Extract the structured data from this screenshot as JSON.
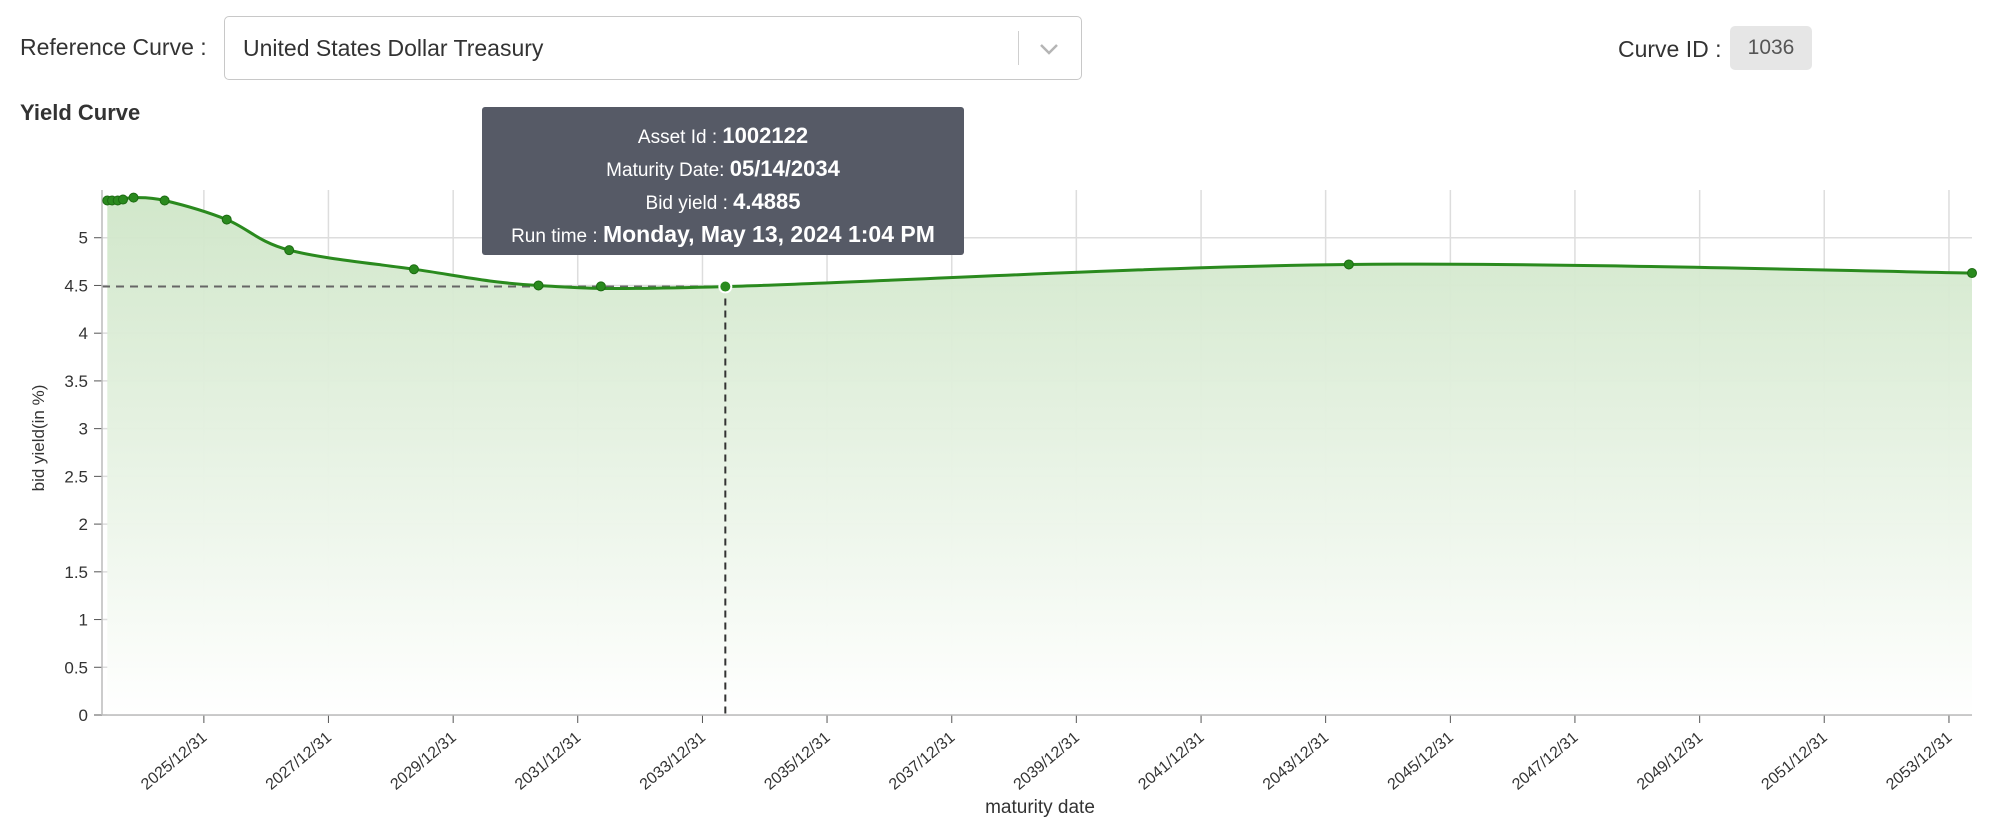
{
  "header": {
    "reference_label": "Reference Curve :",
    "reference_value": "United States Dollar Treasury",
    "curve_id_label": "Curve ID :",
    "curve_id_value": "1036"
  },
  "tooltip": {
    "asset_label": "Asset Id : ",
    "asset_value": "1002122",
    "maturity_label": "Maturity Date: ",
    "maturity_value": "05/14/2034",
    "bid_label": "Bid yield : ",
    "bid_value": "4.4885",
    "run_label": "Run time : ",
    "run_value": "Monday, May 13, 2024 1:04 PM"
  },
  "colors": {
    "line": "#2a8a1e",
    "area_top": "#cfe6c8",
    "area_bottom": "#ffffff",
    "grid": "#dddddd",
    "tooltip_bg": "#565a66"
  },
  "chart_data": {
    "type": "area",
    "title": "Yield Curve",
    "xlabel": "maturity date",
    "ylabel": "bid yield(in %)",
    "x_ticks": [
      "2025/12/31",
      "2027/12/31",
      "2029/12/31",
      "2031/12/31",
      "2033/12/31",
      "2035/12/31",
      "2037/12/31",
      "2039/12/31",
      "2041/12/31",
      "2043/12/31",
      "2045/12/31",
      "2047/12/31",
      "2049/12/31",
      "2051/12/31",
      "2053/12/31"
    ],
    "y_ticks": [
      "0",
      "0.5",
      "1",
      "1.5",
      "2",
      "2.5",
      "3",
      "3.5",
      "4",
      "4.5",
      "5"
    ],
    "ylim": [
      0,
      5.5
    ],
    "xlim": [
      "2024-05-13",
      "2054-05-15"
    ],
    "grid": true,
    "series": [
      {
        "points": [
          {
            "x": "2024-06-13",
            "y": 5.39
          },
          {
            "x": "2024-07-11",
            "y": 5.39
          },
          {
            "x": "2024-08-13",
            "y": 5.39
          },
          {
            "x": "2024-09-13",
            "y": 5.4
          },
          {
            "x": "2024-11-14",
            "y": 5.42
          },
          {
            "x": "2025-05-15",
            "y": 5.39
          },
          {
            "x": "2026-05-14",
            "y": 5.19
          },
          {
            "x": "2027-05-15",
            "y": 4.87
          },
          {
            "x": "2029-05-15",
            "y": 4.67
          },
          {
            "x": "2031-05-15",
            "y": 4.5
          },
          {
            "x": "2034-05-14",
            "y": 4.4885
          },
          {
            "x": "2044-05-15",
            "y": 4.72
          },
          {
            "x": "2054-05-15",
            "y": 4.63
          }
        ]
      }
    ],
    "highlight": {
      "x": "2034-05-14",
      "y": 4.4885
    },
    "extra_markers": [
      {
        "x": "2032-05-15",
        "y": 4.49
      }
    ]
  }
}
